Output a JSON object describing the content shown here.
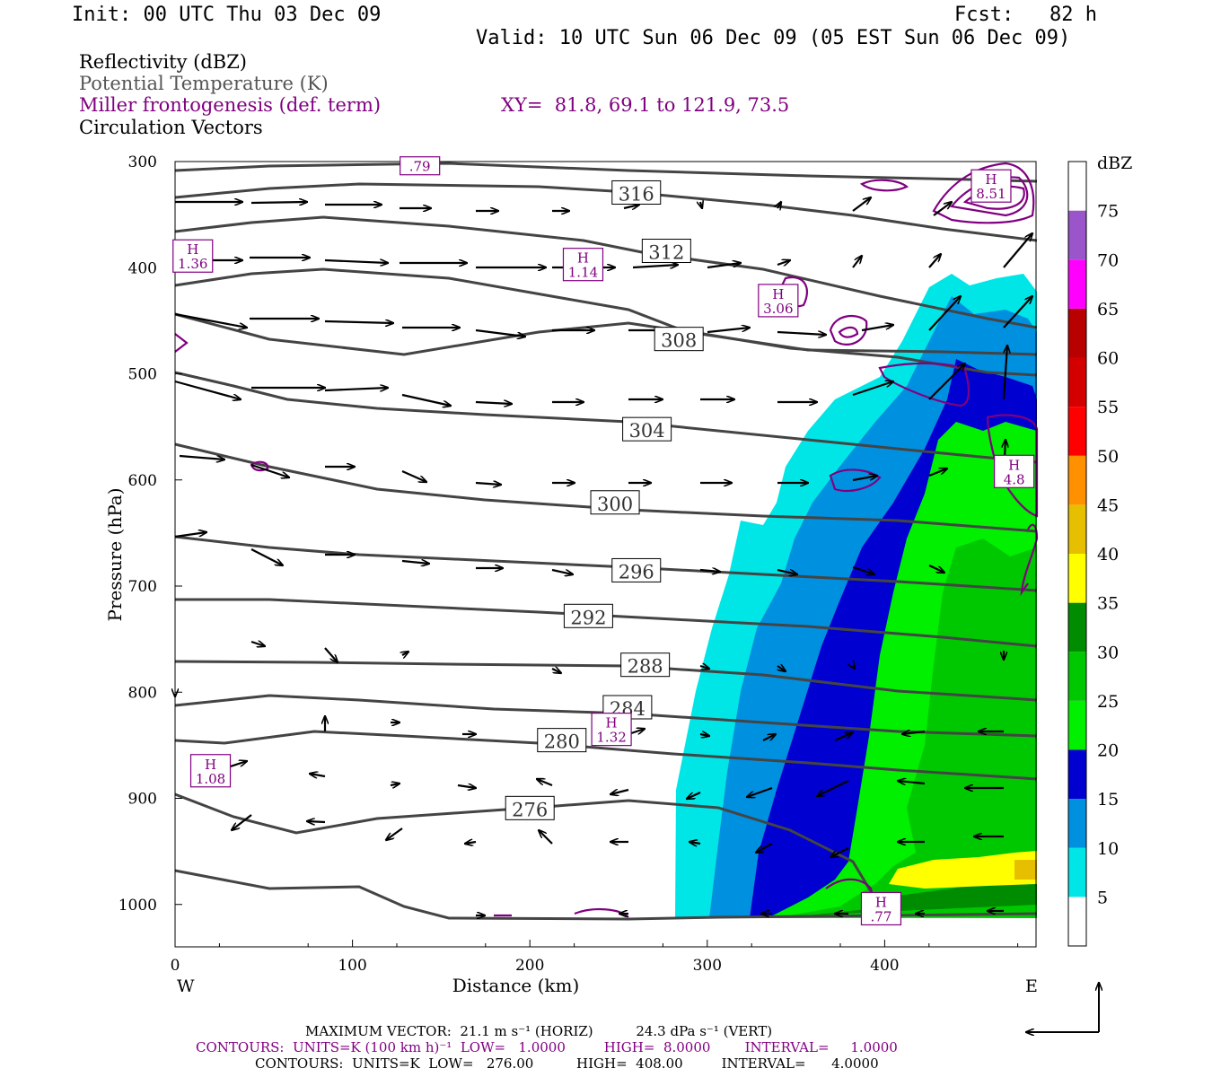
{
  "header": {
    "init": "Init: 00 UTC Thu 03 Dec 09",
    "fcst": "Fcst:   82 h",
    "valid": "Valid: 10 UTC Sun 06 Dec 09 (05 EST Sun 06 Dec 09)"
  },
  "legend": {
    "line1": "Reflectivity (dBZ)",
    "line2": "Potential Temperature (K)",
    "line3": "Miller frontogenesis (def. term)",
    "xy": "XY=  81.8, 69.1 to 121.9, 73.5",
    "line4": "Circulation Vectors"
  },
  "colors": {
    "theta": "#444444",
    "fronto": "#800080",
    "vector": "#000000"
  },
  "chart_data": {
    "type": "heatmap",
    "xlabel": "Distance (km)",
    "ylabel": "Pressure (hPa)",
    "x_ticks": [
      "0",
      "100",
      "200",
      "300",
      "400"
    ],
    "y_ticks": [
      "300",
      "400",
      "500",
      "600",
      "700",
      "800",
      "900",
      "1000"
    ],
    "xlim": [
      0,
      485
    ],
    "ylim": [
      1040,
      300
    ],
    "west_label": "W",
    "east_label": "E",
    "colorbar": {
      "title": "dBZ",
      "levels": [
        "5",
        "10",
        "15",
        "20",
        "25",
        "30",
        "35",
        "40",
        "45",
        "50",
        "55",
        "60",
        "65",
        "70",
        "75"
      ],
      "colors": [
        "#ffffff",
        "#00e6e6",
        "#0090e0",
        "#0000d0",
        "#00f000",
        "#00c800",
        "#008c00",
        "#ffff00",
        "#e6c000",
        "#ff9000",
        "#ff0000",
        "#d40000",
        "#b80000",
        "#ff00ff",
        "#9955c9",
        "#ffffff"
      ]
    },
    "theta_labels": [
      {
        "value": "316",
        "x": 260,
        "p": 330
      },
      {
        "value": "312",
        "x": 277,
        "p": 385
      },
      {
        "value": "308",
        "x": 284,
        "p": 468
      },
      {
        "value": "304",
        "x": 266,
        "p": 553
      },
      {
        "value": "300",
        "x": 248,
        "p": 622
      },
      {
        "value": "296",
        "x": 260,
        "p": 686
      },
      {
        "value": "292",
        "x": 233,
        "p": 729
      },
      {
        "value": "288",
        "x": 265,
        "p": 775
      },
      {
        "value": "284",
        "x": 255,
        "p": 815
      },
      {
        "value": "280",
        "x": 218,
        "p": 846
      },
      {
        "value": "276",
        "x": 200,
        "p": 910
      }
    ],
    "fronto_maxima": [
      {
        "label": "H",
        "value": "1.36",
        "x": 10,
        "p": 389
      },
      {
        "label": "H",
        "value": "1.14",
        "x": 230,
        "p": 397
      },
      {
        "label": "H",
        "value": "3.06",
        "x": 340,
        "p": 431
      },
      {
        "label": "H",
        "value": "8.51",
        "x": 460,
        "p": 323
      },
      {
        "label": "H",
        "value": "4.8",
        "x": 473,
        "p": 592
      },
      {
        "label": "H",
        "value": "1.32",
        "x": 246,
        "p": 835
      },
      {
        "label": "H",
        "value": "1.08",
        "x": 20,
        "p": 874
      },
      {
        "label": "H",
        "value": ".77",
        "x": 398,
        "p": 1004
      },
      {
        "label": "",
        "value": ".79",
        "x": 138,
        "p": 304
      }
    ]
  },
  "footer": {
    "max_vector": "MAXIMUM VECTOR:  21.1 m s⁻¹ (HORIZ)          24.3 dPa s⁻¹ (VERT)",
    "contours1": "CONTOURS:  UNITS=K (100 km h)⁻¹  LOW=   1.0000         HIGH=  8.0000        INTERVAL=     1.0000",
    "contours2": "CONTOURS:  UNITS=K  LOW=   276.00          HIGH=  408.00         INTERVAL=      4.0000"
  }
}
